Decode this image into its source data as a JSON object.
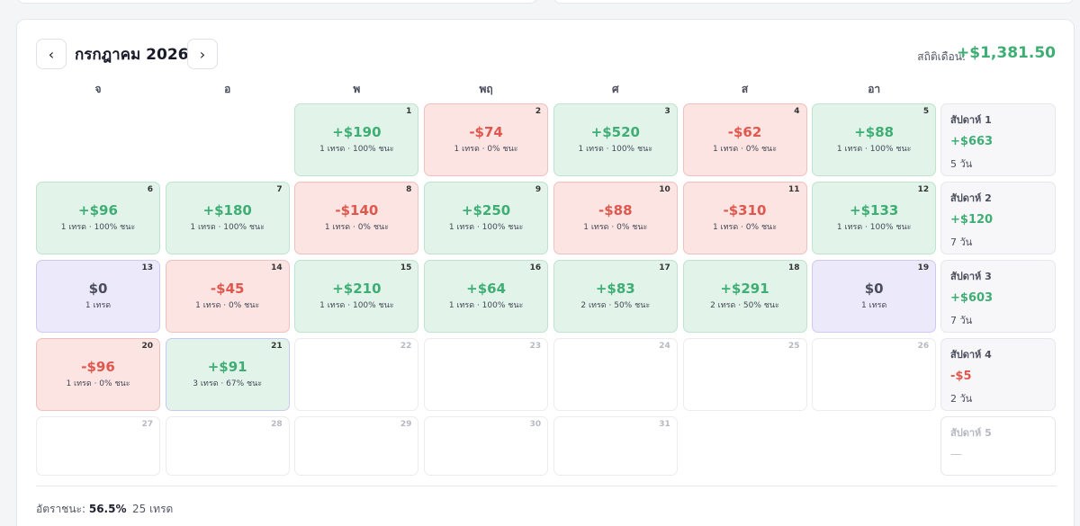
{
  "header": {
    "prev_icon": "‹",
    "next_icon": "›",
    "month_title": "กรกฎาคม 2026",
    "stat_label": "สถิติเดือน:",
    "stat_value": "+$1,381.50"
  },
  "weekdays": [
    "จ",
    "อ",
    "พ",
    "พฤ",
    "ศ",
    "ส",
    "อา"
  ],
  "colors": {
    "win": "#3fae74",
    "loss": "#e0574d",
    "neutral": "#ece9fb"
  },
  "days": [
    {
      "day": "1",
      "pnl": "+$190",
      "meta": "1 เทรด · 100% ชนะ",
      "status": "win",
      "row": 0,
      "col": 2
    },
    {
      "day": "2",
      "pnl": "-$74",
      "meta": "1 เทรด · 0% ชนะ",
      "status": "loss",
      "row": 0,
      "col": 3
    },
    {
      "day": "3",
      "pnl": "+$520",
      "meta": "1 เทรด · 100% ชนะ",
      "status": "win",
      "row": 0,
      "col": 4
    },
    {
      "day": "4",
      "pnl": "-$62",
      "meta": "1 เทรด · 0% ชนะ",
      "status": "loss",
      "row": 0,
      "col": 5
    },
    {
      "day": "5",
      "pnl": "+$88",
      "meta": "1 เทรด · 100% ชนะ",
      "status": "win",
      "row": 0,
      "col": 6
    },
    {
      "day": "6",
      "pnl": "+$96",
      "meta": "1 เทรด · 100% ชนะ",
      "status": "win",
      "row": 1,
      "col": 0
    },
    {
      "day": "7",
      "pnl": "+$180",
      "meta": "1 เทรด · 100% ชนะ",
      "status": "win",
      "row": 1,
      "col": 1
    },
    {
      "day": "8",
      "pnl": "-$140",
      "meta": "1 เทรด · 0% ชนะ",
      "status": "loss",
      "row": 1,
      "col": 2
    },
    {
      "day": "9",
      "pnl": "+$250",
      "meta": "1 เทรด · 100% ชนะ",
      "status": "win",
      "row": 1,
      "col": 3
    },
    {
      "day": "10",
      "pnl": "-$88",
      "meta": "1 เทรด · 0% ชนะ",
      "status": "loss",
      "row": 1,
      "col": 4
    },
    {
      "day": "11",
      "pnl": "-$310",
      "meta": "1 เทรด · 0% ชนะ",
      "status": "loss",
      "row": 1,
      "col": 5
    },
    {
      "day": "12",
      "pnl": "+$133",
      "meta": "1 เทรด · 100% ชนะ",
      "status": "win",
      "row": 1,
      "col": 6
    },
    {
      "day": "13",
      "pnl": "$0",
      "meta": "1 เทรด",
      "status": "zero",
      "row": 2,
      "col": 0
    },
    {
      "day": "14",
      "pnl": "-$45",
      "meta": "1 เทรด · 0% ชนะ",
      "status": "loss",
      "row": 2,
      "col": 1
    },
    {
      "day": "15",
      "pnl": "+$210",
      "meta": "1 เทรด · 100% ชนะ",
      "status": "win",
      "row": 2,
      "col": 2
    },
    {
      "day": "16",
      "pnl": "+$64",
      "meta": "1 เทรด · 100% ชนะ",
      "status": "win",
      "row": 2,
      "col": 3
    },
    {
      "day": "17",
      "pnl": "+$83",
      "meta": "2 เทรด · 50% ชนะ",
      "status": "win",
      "row": 2,
      "col": 4
    },
    {
      "day": "18",
      "pnl": "+$291",
      "meta": "2 เทรด · 50% ชนะ",
      "status": "win",
      "row": 2,
      "col": 5
    },
    {
      "day": "19",
      "pnl": "$0",
      "meta": "1 เทรด",
      "status": "zero",
      "row": 2,
      "col": 6
    },
    {
      "day": "20",
      "pnl": "-$96",
      "meta": "1 เทรด · 0% ชนะ",
      "status": "loss",
      "row": 3,
      "col": 0
    },
    {
      "day": "21",
      "pnl": "+$91",
      "meta": "3 เทรด · 67% ชนะ",
      "status": "mixed",
      "row": 3,
      "col": 1
    },
    {
      "day": "22",
      "pnl": "",
      "meta": "",
      "status": "empty",
      "row": 3,
      "col": 2
    },
    {
      "day": "23",
      "pnl": "",
      "meta": "",
      "status": "empty",
      "row": 3,
      "col": 3
    },
    {
      "day": "24",
      "pnl": "",
      "meta": "",
      "status": "empty",
      "row": 3,
      "col": 4
    },
    {
      "day": "25",
      "pnl": "",
      "meta": "",
      "status": "empty",
      "row": 3,
      "col": 5
    },
    {
      "day": "26",
      "pnl": "",
      "meta": "",
      "status": "empty",
      "row": 3,
      "col": 6
    },
    {
      "day": "27",
      "pnl": "",
      "meta": "",
      "status": "empty",
      "row": 4,
      "col": 0
    },
    {
      "day": "28",
      "pnl": "",
      "meta": "",
      "status": "empty",
      "row": 4,
      "col": 1
    },
    {
      "day": "29",
      "pnl": "",
      "meta": "",
      "status": "empty",
      "row": 4,
      "col": 2
    },
    {
      "day": "30",
      "pnl": "",
      "meta": "",
      "status": "empty",
      "row": 4,
      "col": 3
    },
    {
      "day": "31",
      "pnl": "",
      "meta": "",
      "status": "empty",
      "row": 4,
      "col": 4
    }
  ],
  "weeks": [
    {
      "label": "สัปดาห์ 1",
      "pnl": "+$663",
      "days": "5 วัน",
      "sign": "pos"
    },
    {
      "label": "สัปดาห์ 2",
      "pnl": "+$120",
      "days": "7 วัน",
      "sign": "pos"
    },
    {
      "label": "สัปดาห์ 3",
      "pnl": "+$603",
      "days": "7 วัน",
      "sign": "pos"
    },
    {
      "label": "สัปดาห์ 4",
      "pnl": "-$5",
      "days": "2 วัน",
      "sign": "neg"
    },
    {
      "label": "สัปดาห์ 5",
      "pnl": "—",
      "days": "",
      "sign": "none"
    }
  ],
  "footer": {
    "win_rate_label": "อัตราชนะ:",
    "win_rate_value": "56.5%",
    "trades": "25 เทรด"
  }
}
